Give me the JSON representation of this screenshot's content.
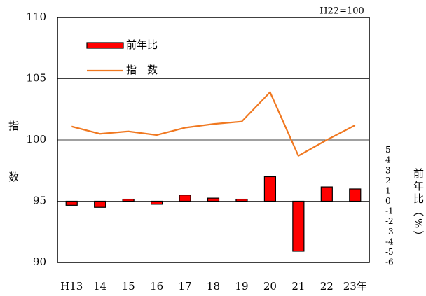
{
  "chart_data": {
    "type": "bar_line",
    "annotation": "H22=100",
    "y_label": "指数",
    "y2_label": "前年比（%）",
    "categories": [
      "H13",
      "14",
      "15",
      "16",
      "17",
      "18",
      "19",
      "20",
      "21",
      "22",
      "23年"
    ],
    "series": [
      {
        "name": "前年比",
        "type": "bar",
        "axis": "y2",
        "color": "#ff0000",
        "values": [
          -0.4,
          -0.6,
          0.2,
          -0.3,
          0.6,
          0.3,
          0.2,
          2.4,
          -4.9,
          1.4,
          1.2
        ]
      },
      {
        "name": "指　数",
        "type": "line",
        "axis": "y",
        "color": "#f07820",
        "values": [
          101.1,
          100.5,
          100.7,
          100.4,
          101.0,
          101.3,
          101.5,
          103.9,
          98.7,
          100.0,
          101.2
        ]
      }
    ],
    "ylim": [
      90,
      110
    ],
    "yticks": [
      90,
      95,
      100,
      105,
      110
    ],
    "y2lim": [
      -6,
      18
    ],
    "y2ticks": [
      -6,
      -5,
      -4,
      -3,
      -2,
      -1,
      0,
      1,
      2,
      3,
      4,
      5
    ],
    "grid": true,
    "legend": "upper-left"
  }
}
